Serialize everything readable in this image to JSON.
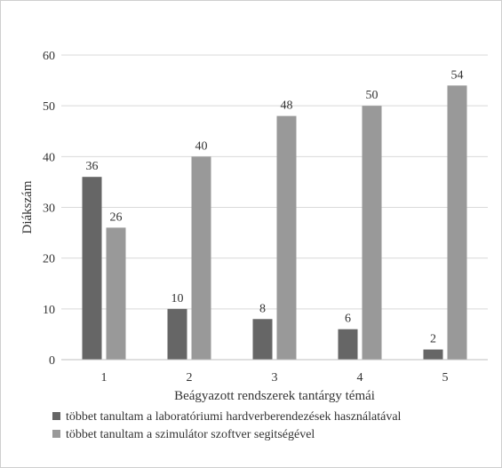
{
  "chart_data": {
    "type": "bar",
    "xlabel": "Beágyazott rendszerek tantárgy témái",
    "ylabel": "Diákszám",
    "ylim": [
      0,
      60
    ],
    "yticks": [
      0,
      10,
      20,
      30,
      40,
      50,
      60
    ],
    "grid": true,
    "legend_placement": "bottom-left",
    "categories": [
      "1",
      "2",
      "3",
      "4",
      "5"
    ],
    "series": [
      {
        "name": "többet tanultam a laboratóriumi hardverberendezések használatával",
        "color": "#666666",
        "values": [
          36,
          10,
          8,
          6,
          2
        ]
      },
      {
        "name": "többet tanultam a szimulátor szoftver segitségével",
        "color": "#999999",
        "values": [
          26,
          40,
          48,
          50,
          54
        ]
      }
    ]
  }
}
